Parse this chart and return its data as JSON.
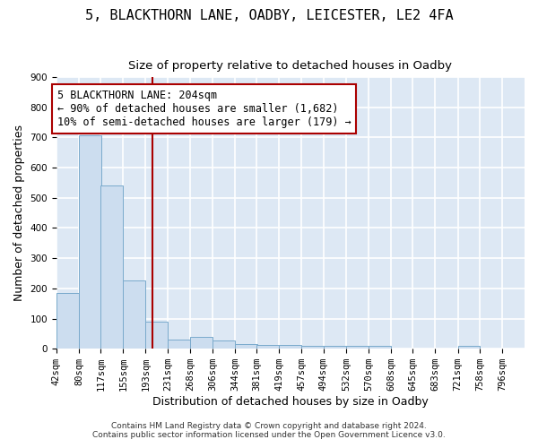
{
  "title1": "5, BLACKTHORN LANE, OADBY, LEICESTER, LE2 4FA",
  "title2": "Size of property relative to detached houses in Oadby",
  "xlabel": "Distribution of detached houses by size in Oadby",
  "ylabel": "Number of detached properties",
  "bar_color": "#ccddef",
  "bar_edge_color": "#7aaacc",
  "bg_color": "#dde8f4",
  "grid_color": "#ffffff",
  "bins": [
    42,
    80,
    117,
    155,
    193,
    231,
    268,
    306,
    344,
    381,
    419,
    457,
    494,
    532,
    570,
    608,
    645,
    683,
    721,
    758,
    796
  ],
  "values": [
    186,
    707,
    540,
    225,
    91,
    30,
    40,
    26,
    15,
    13,
    12,
    10,
    9,
    9,
    9,
    0,
    0,
    0,
    9,
    0,
    0
  ],
  "vline_x": 204,
  "vline_color": "#aa0000",
  "annotation_text": "5 BLACKTHORN LANE: 204sqm\n← 90% of detached houses are smaller (1,682)\n10% of semi-detached houses are larger (179) →",
  "annotation_box_color": "#ffffff",
  "annotation_border_color": "#aa0000",
  "ylim": [
    0,
    900
  ],
  "footer1": "Contains HM Land Registry data © Crown copyright and database right 2024.",
  "footer2": "Contains public sector information licensed under the Open Government Licence v3.0.",
  "title1_fontsize": 11,
  "title2_fontsize": 9.5,
  "xlabel_fontsize": 9,
  "ylabel_fontsize": 9,
  "tick_fontsize": 7.5,
  "annotation_fontsize": 8.5,
  "footer_fontsize": 6.5
}
